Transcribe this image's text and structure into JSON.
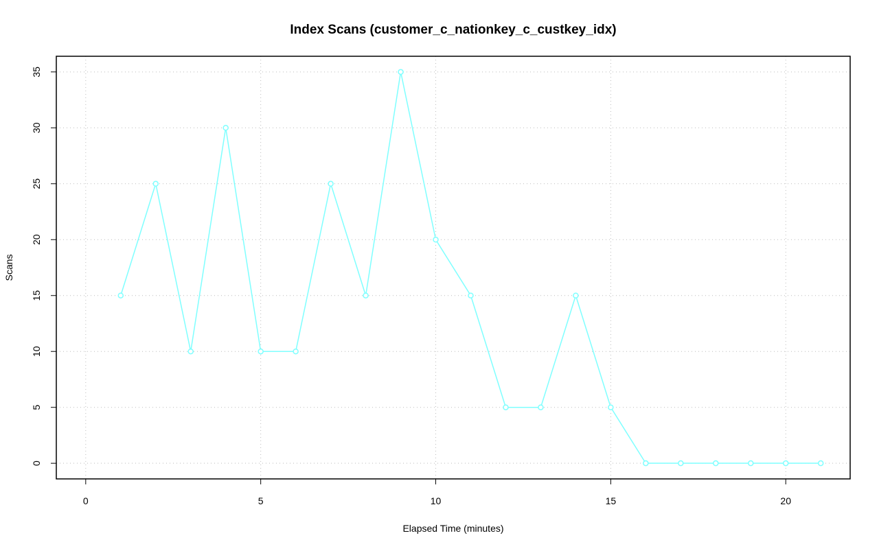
{
  "chart_data": {
    "type": "line",
    "title": "Index Scans (customer_c_nationkey_c_custkey_idx)",
    "x_label": "Elapsed Time (minutes)",
    "y_label": "Scans",
    "x": [
      1,
      2,
      3,
      4,
      5,
      6,
      7,
      8,
      9,
      10,
      11,
      12,
      13,
      14,
      15,
      16,
      17,
      18,
      19,
      20,
      21
    ],
    "series": [
      {
        "color": "#7fffff",
        "values": [
          15,
          25,
          10,
          30,
          10,
          10,
          25,
          15,
          35,
          20,
          15,
          5,
          5,
          15,
          5,
          0,
          0,
          0,
          0,
          0,
          0
        ]
      }
    ],
    "xlim": [
      -0.84,
      21.84
    ],
    "xticks": [
      0,
      5,
      10,
      15,
      20
    ],
    "ylim": [
      -1.4,
      36.4
    ],
    "yticks": [
      0,
      5,
      10,
      15,
      20,
      25,
      30,
      35
    ],
    "grid": true,
    "markers": true
  }
}
